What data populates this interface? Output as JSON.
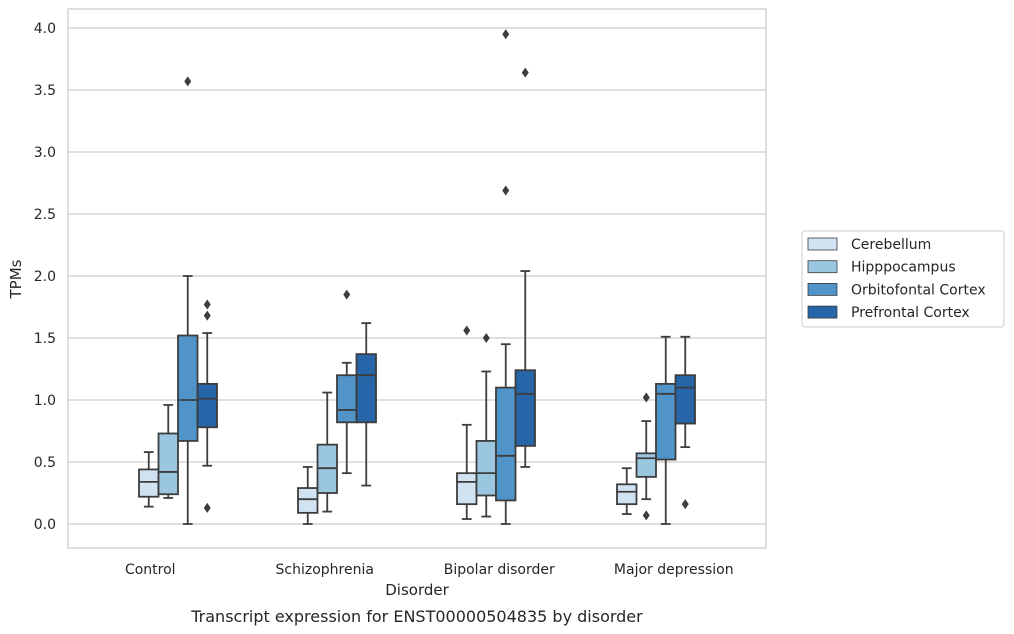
{
  "chart_data": {
    "type": "box",
    "xlabel": "Disorder",
    "ylabel": "TPMs",
    "caption": "Transcript expression for ENST00000504835 by disorder",
    "ylim": [
      -0.18,
      4.15
    ],
    "yticks": [
      "0.0",
      "0.5",
      "1.0",
      "1.5",
      "2.0",
      "2.5",
      "3.0",
      "3.5",
      "4.0"
    ],
    "grid": "horizontal",
    "legend_position": "right",
    "categories": [
      "Control",
      "Schizophrenia",
      "Bipolar disorder",
      "Major depression"
    ],
    "series": [
      {
        "name": "Cerebellum",
        "color": "#d1e2f2",
        "boxes": [
          {
            "whislo": 0.14,
            "q1": 0.22,
            "med": 0.34,
            "q3": 0.44,
            "whishi": 0.58,
            "fliers": []
          },
          {
            "whislo": 0.0,
            "q1": 0.09,
            "med": 0.2,
            "q3": 0.29,
            "whishi": 0.46,
            "fliers": []
          },
          {
            "whislo": 0.04,
            "q1": 0.16,
            "med": 0.34,
            "q3": 0.41,
            "whishi": 0.8,
            "fliers": [
              1.56
            ]
          },
          {
            "whislo": 0.08,
            "q1": 0.16,
            "med": 0.26,
            "q3": 0.32,
            "whishi": 0.45,
            "fliers": []
          }
        ]
      },
      {
        "name": "Hipppocampus",
        "color": "#9ac6e0",
        "boxes": [
          {
            "whislo": 0.21,
            "q1": 0.24,
            "med": 0.42,
            "q3": 0.73,
            "whishi": 0.96,
            "fliers": []
          },
          {
            "whislo": 0.1,
            "q1": 0.25,
            "med": 0.45,
            "q3": 0.64,
            "whishi": 1.06,
            "fliers": []
          },
          {
            "whislo": 0.06,
            "q1": 0.23,
            "med": 0.41,
            "q3": 0.67,
            "whishi": 1.23,
            "fliers": [
              1.5
            ]
          },
          {
            "whislo": 0.2,
            "q1": 0.38,
            "med": 0.53,
            "q3": 0.57,
            "whishi": 0.83,
            "fliers": [
              0.07,
              1.02
            ]
          }
        ]
      },
      {
        "name": "Orbitofontal Cortex",
        "color": "#5094c9",
        "boxes": [
          {
            "whislo": 0.0,
            "q1": 0.67,
            "med": 1.0,
            "q3": 1.52,
            "whishi": 2.0,
            "fliers": [
              3.57
            ]
          },
          {
            "whislo": 0.41,
            "q1": 0.82,
            "med": 0.92,
            "q3": 1.2,
            "whishi": 1.3,
            "fliers": [
              1.85
            ]
          },
          {
            "whislo": 0.0,
            "q1": 0.19,
            "med": 0.55,
            "q3": 1.1,
            "whishi": 1.45,
            "fliers": [
              2.69,
              3.95
            ]
          },
          {
            "whislo": 0.0,
            "q1": 0.52,
            "med": 1.05,
            "q3": 1.13,
            "whishi": 1.51,
            "fliers": []
          }
        ]
      },
      {
        "name": "Prefrontal Cortex",
        "color": "#2565a8",
        "boxes": [
          {
            "whislo": 0.47,
            "q1": 0.78,
            "med": 1.01,
            "q3": 1.13,
            "whishi": 1.54,
            "fliers": [
              0.13,
              1.68,
              1.77
            ]
          },
          {
            "whislo": 0.31,
            "q1": 0.82,
            "med": 1.2,
            "q3": 1.37,
            "whishi": 1.62,
            "fliers": []
          },
          {
            "whislo": 0.46,
            "q1": 0.63,
            "med": 1.05,
            "q3": 1.24,
            "whishi": 2.04,
            "fliers": [
              3.64
            ]
          },
          {
            "whislo": 0.62,
            "q1": 0.81,
            "med": 1.1,
            "q3": 1.2,
            "whishi": 1.51,
            "fliers": [
              0.16
            ]
          }
        ]
      }
    ]
  }
}
